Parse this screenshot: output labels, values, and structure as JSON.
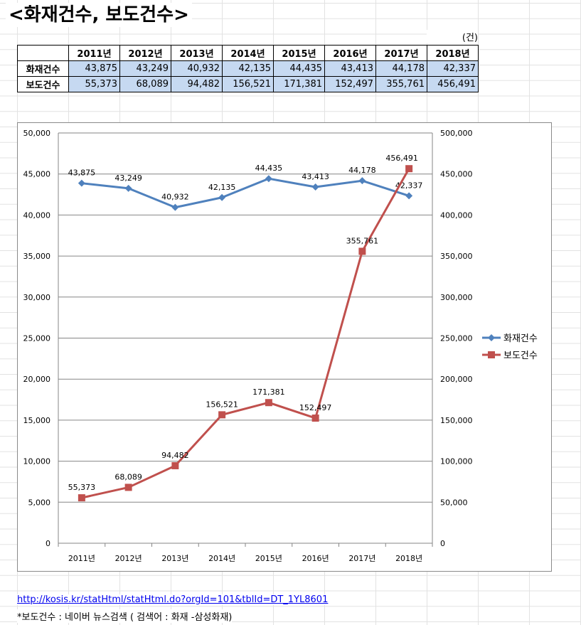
{
  "title": "<화재건수, 보도건수>",
  "unit": "(건)",
  "table": {
    "headers": [
      "2011년",
      "2012년",
      "2013년",
      "2014년",
      "2015년",
      "2016년",
      "2017년",
      "2018년"
    ],
    "rows": [
      {
        "label": "화재건수",
        "values": [
          "43,875",
          "43,249",
          "40,932",
          "42,135",
          "44,435",
          "43,413",
          "44,178",
          "42,337"
        ]
      },
      {
        "label": "보도건수",
        "values": [
          "55,373",
          "68,089",
          "94,482",
          "156,521",
          "171,381",
          "152,497",
          "355,761",
          "456,491"
        ]
      }
    ]
  },
  "chart_data": {
    "type": "line",
    "categories": [
      "2011년",
      "2012년",
      "2013년",
      "2014년",
      "2015년",
      "2016년",
      "2017년",
      "2018년"
    ],
    "series": [
      {
        "name": "화재건수",
        "axis": "left",
        "color": "#4f81bd",
        "marker": "diamond",
        "values": [
          43875,
          43249,
          40932,
          42135,
          44435,
          43413,
          44178,
          42337
        ]
      },
      {
        "name": "보도건수",
        "axis": "right",
        "color": "#c0504d",
        "marker": "square",
        "values": [
          55373,
          68089,
          94482,
          156521,
          171381,
          152497,
          355761,
          456491
        ]
      }
    ],
    "y_left": {
      "min": 0,
      "max": 50000,
      "step": 5000,
      "ticks": [
        "0",
        "5,000",
        "10,000",
        "15,000",
        "20,000",
        "25,000",
        "30,000",
        "35,000",
        "40,000",
        "45,000",
        "50,000"
      ]
    },
    "y_right": {
      "min": 0,
      "max": 500000,
      "step": 50000,
      "ticks": [
        "0",
        "50,000",
        "100,000",
        "150,000",
        "200,000",
        "250,000",
        "300,000",
        "350,000",
        "400,000",
        "450,000",
        "500,000"
      ]
    },
    "data_labels": {
      "화재건수": [
        "43,875",
        "43,249",
        "40,932",
        "42,135",
        "44,435",
        "43,413",
        "44,178",
        "42,337"
      ],
      "보도건수": [
        "55,373",
        "68,089",
        "94,482",
        "156,521",
        "171,381",
        "152,497",
        "355,761",
        "456,491"
      ]
    },
    "grid": true,
    "legend_position": "right"
  },
  "source_link": "http://kosis.kr/statHtml/statHtml.do?orgId=101&tblId=DT_1YL8601",
  "note": "*보도건수 : 네이버 뉴스검색 ( 검색어 : 화재 -삼성화재)"
}
